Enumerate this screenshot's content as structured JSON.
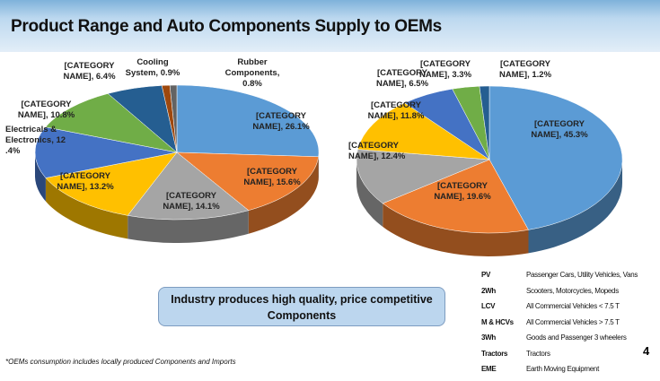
{
  "title": "Product Range and Auto Components Supply to OEMs",
  "chart_data": [
    {
      "type": "pie",
      "style": "3d",
      "slices": [
        {
          "label": "[CATEGORY NAME], 26.1%",
          "value": 26.1,
          "color": "#5b9bd5"
        },
        {
          "label": "[CATEGORY NAME], 15.6%",
          "value": 15.6,
          "color": "#ed7d31"
        },
        {
          "label": "[CATEGORY NAME], 14.1%",
          "value": 14.1,
          "color": "#a5a5a5"
        },
        {
          "label": "[CATEGORY NAME], 13.2%",
          "value": 13.2,
          "color": "#ffc000"
        },
        {
          "label": "Electricals & Electronics, 12 .4%",
          "value": 12.4,
          "color": "#4472c4"
        },
        {
          "label": "[CATEGORY NAME], 10.8%",
          "value": 10.8,
          "color": "#70ad47"
        },
        {
          "label": "[CATEGORY NAME], 6.4%",
          "value": 6.4,
          "color": "#255e91"
        },
        {
          "label": "Cooling System, 0.9%",
          "value": 0.9,
          "color": "#9e480e"
        },
        {
          "label": "Rubber Components, 0.8%",
          "value": 0.8,
          "color": "#636363"
        }
      ]
    },
    {
      "type": "pie",
      "style": "3d",
      "slices": [
        {
          "label": "[CATEGORY NAME], 45.3%",
          "value": 45.3,
          "color": "#5b9bd5"
        },
        {
          "label": "[CATEGORY NAME], 19.6%",
          "value": 19.6,
          "color": "#ed7d31"
        },
        {
          "label": "[CATEGORY NAME], 12.4%",
          "value": 12.4,
          "color": "#a5a5a5"
        },
        {
          "label": "[CATEGORY NAME], 11.8%",
          "value": 11.8,
          "color": "#ffc000"
        },
        {
          "label": "[CATEGORY NAME], 6.5%",
          "value": 6.5,
          "color": "#4472c4"
        },
        {
          "label": "[CATEGORY NAME], 3.3%",
          "value": 3.3,
          "color": "#70ad47"
        },
        {
          "label": "[CATEGORY NAME], 1.2%",
          "value": 1.2,
          "color": "#255e91"
        }
      ]
    }
  ],
  "callout": "Industry  produces high quality, price competitive Components",
  "footnote": "*OEMs  consumption includes locally produced Components and Imports",
  "legend": [
    {
      "abbr": "PV",
      "desc": "Passenger Cars, Utility Vehicles, Vans"
    },
    {
      "abbr": "2Wh",
      "desc": "Scooters, Motorcycles, Mopeds"
    },
    {
      "abbr": "LCV",
      "desc": "All Commercial Vehicles < 7.5 T"
    },
    {
      "abbr": "M & HCVs",
      "desc": "All Commercial Vehicles > 7.5 T"
    },
    {
      "abbr": "3Wh",
      "desc": "Goods and Passenger 3 wheelers"
    },
    {
      "abbr": "Tractors",
      "desc": "Tractors"
    },
    {
      "abbr": "EME",
      "desc": "Earth Moving Equipment"
    }
  ],
  "page_number": "4"
}
